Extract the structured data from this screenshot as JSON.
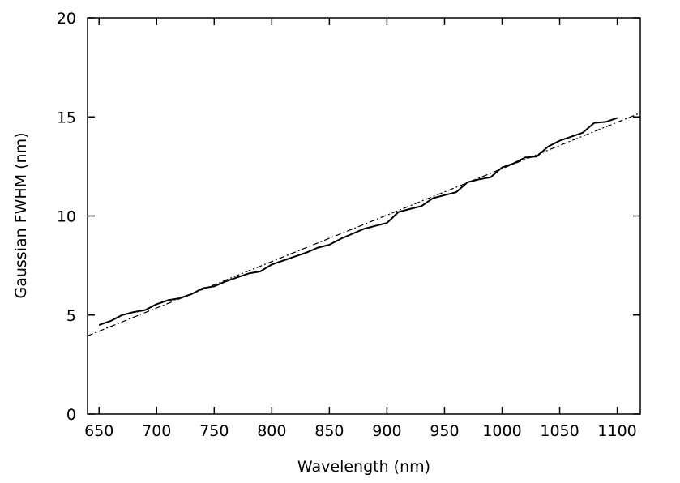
{
  "chart_data": {
    "type": "line",
    "xlabel": "Wavelength (nm)",
    "ylabel": "Gaussian FWHM (nm)",
    "xlim": [
      640,
      1120
    ],
    "ylim": [
      0,
      20
    ],
    "x_ticks": [
      650,
      700,
      750,
      800,
      850,
      900,
      950,
      1000,
      1050,
      1100
    ],
    "y_ticks": [
      0,
      5,
      10,
      15,
      20
    ],
    "grid": false,
    "series": [
      {
        "style": "solid",
        "x": [
          650,
          660,
          670,
          680,
          690,
          700,
          710,
          720,
          730,
          740,
          750,
          760,
          770,
          780,
          790,
          800,
          810,
          820,
          830,
          840,
          850,
          860,
          870,
          880,
          890,
          900,
          910,
          920,
          930,
          940,
          950,
          960,
          970,
          980,
          990,
          1000,
          1010,
          1020,
          1030,
          1040,
          1050,
          1060,
          1070,
          1080,
          1090,
          1100
        ],
        "y": [
          4.5,
          4.7,
          5.0,
          5.15,
          5.25,
          5.55,
          5.75,
          5.85,
          6.05,
          6.35,
          6.45,
          6.7,
          6.9,
          7.1,
          7.2,
          7.55,
          7.75,
          7.95,
          8.15,
          8.4,
          8.55,
          8.85,
          9.1,
          9.35,
          9.5,
          9.65,
          10.2,
          10.35,
          10.5,
          10.9,
          11.05,
          11.2,
          11.7,
          11.85,
          11.95,
          12.45,
          12.65,
          12.95,
          13.0,
          13.5,
          13.8,
          14.0,
          14.2,
          14.7,
          14.75,
          14.95
        ]
      },
      {
        "style": "dashed",
        "x": [
          640,
          1120
        ],
        "y": [
          3.95,
          15.2
        ]
      }
    ]
  }
}
